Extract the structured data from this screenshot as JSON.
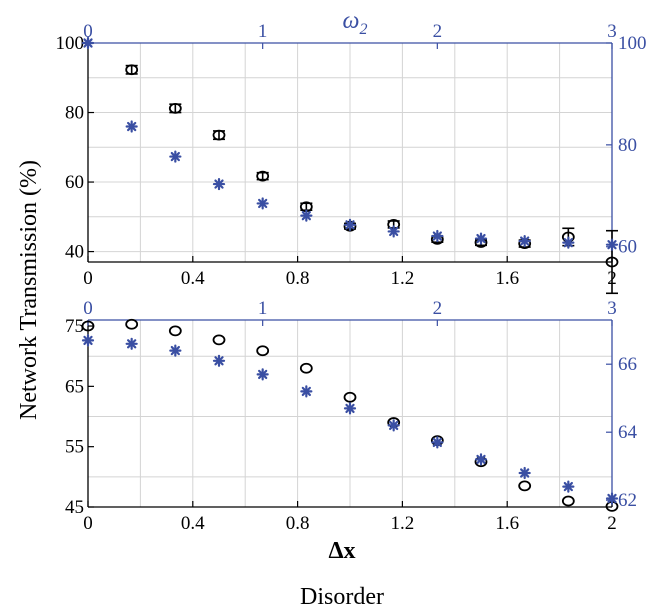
{
  "colors": {
    "black": "#000000",
    "blue": "#3a4fa3"
  },
  "figure": {
    "ylabel": "Network Transmission (%)",
    "xlabel": "Δx",
    "caption": "Disorder"
  },
  "chart_data": [
    {
      "type": "scatter",
      "panel": "top",
      "top_axis_label": "ω2",
      "xlim": [
        0,
        2
      ],
      "x_ticks": [
        "0",
        "0.4",
        "0.8",
        "1.2",
        "1.6",
        "2"
      ],
      "ylim": [
        37,
        100
      ],
      "y_ticks": [
        "100",
        "80",
        "60",
        "40"
      ],
      "top_xlim": [
        0,
        3
      ],
      "top_ticks": [
        "0",
        "1",
        "2",
        "3"
      ],
      "right_ylim": [
        57,
        100
      ],
      "right_ticks": [
        "100",
        "80",
        "60"
      ],
      "series": [
        {
          "marker": "circle-errorbar",
          "axis": "left",
          "x": [
            0.1667,
            0.3333,
            0.5,
            0.6667,
            0.8333,
            1.0,
            1.1667,
            1.3333,
            1.5,
            1.6667,
            1.8333,
            2.0
          ],
          "y": [
            92.3,
            81.2,
            73.5,
            61.7,
            52.9,
            47.3,
            47.8,
            43.5,
            42.6,
            42.3,
            44.2,
            37.0
          ],
          "err": [
            1.2,
            1.2,
            1.2,
            1.0,
            1.0,
            0.8,
            1.0,
            0.8,
            0.8,
            1.0,
            2.5,
            9.0
          ]
        },
        {
          "marker": "asterisk",
          "axis": "right",
          "top_x": [
            0.0,
            0.25,
            0.5,
            0.75,
            1.0,
            1.25,
            1.5,
            1.75,
            2.0,
            2.25,
            2.5,
            2.75,
            3.0
          ],
          "y": [
            100.0,
            83.6,
            77.7,
            72.3,
            68.5,
            66.1,
            64.3,
            63.0,
            62.1,
            61.6,
            61.1,
            60.8,
            60.4
          ]
        }
      ]
    },
    {
      "type": "scatter",
      "panel": "bottom",
      "xlim": [
        0,
        2
      ],
      "x_ticks": [
        "0",
        "0.4",
        "0.8",
        "1.2",
        "1.6",
        "2"
      ],
      "ylim": [
        45,
        76
      ],
      "y_ticks": [
        "75",
        "65",
        "55",
        "45"
      ],
      "top_xlim": [
        0,
        3
      ],
      "top_ticks": [
        "0",
        "1",
        "2",
        "3"
      ],
      "right_ylim": [
        61.8,
        67.3
      ],
      "right_ticks": [
        "66",
        "64",
        "62"
      ],
      "series": [
        {
          "marker": "circle",
          "axis": "left",
          "x": [
            0.0,
            0.1667,
            0.3333,
            0.5,
            0.6667,
            0.8333,
            1.0,
            1.1667,
            1.3333,
            1.5,
            1.6667,
            1.8333,
            2.0
          ],
          "y": [
            75.0,
            75.3,
            74.2,
            72.7,
            70.9,
            68.0,
            63.2,
            59.0,
            56.0,
            52.5,
            48.5,
            46.0,
            45.1
          ]
        },
        {
          "marker": "asterisk",
          "axis": "right",
          "top_x": [
            0.0,
            0.25,
            0.5,
            0.75,
            1.0,
            1.25,
            1.5,
            1.75,
            2.0,
            2.25,
            2.5,
            2.75,
            3.0
          ],
          "y": [
            66.7,
            66.6,
            66.4,
            66.1,
            65.7,
            65.2,
            64.7,
            64.2,
            63.7,
            63.2,
            62.8,
            62.4,
            62.05
          ]
        }
      ]
    }
  ]
}
